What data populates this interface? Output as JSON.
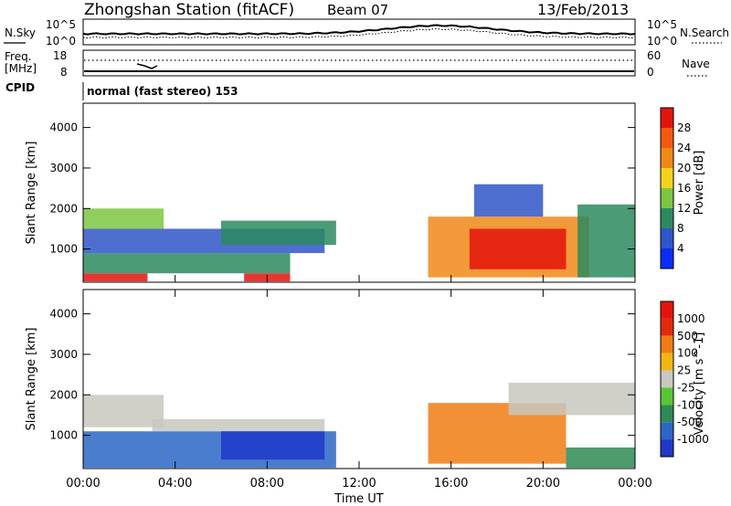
{
  "header": {
    "station": "Zhongshan Station (fitACF)",
    "beam": "Beam 07",
    "date": "13/Feb/2013"
  },
  "top_panels": {
    "noise": {
      "left_label": "N.Sky",
      "left_ticks": [
        "10^5",
        "10^0"
      ],
      "right_ticks": [
        "10^5",
        "10^0"
      ],
      "right_label": "N.Search"
    },
    "freq": {
      "left_label_line1": "Freq.",
      "left_label_line2": "[MHz]",
      "left_ticks": [
        "18",
        "8"
      ],
      "right_ticks": [
        "60",
        "0"
      ],
      "right_label": "Nave"
    },
    "cpid": {
      "label": "CPID",
      "value": "normal (fast stereo) 153"
    }
  },
  "chart_data": [
    {
      "type": "heatmap",
      "title": "",
      "ylabel": "Slant Range [km]",
      "yticks": [
        "1000",
        "2000",
        "3000",
        "4000"
      ],
      "ylim": [
        180,
        4600
      ],
      "colorbar_label": "Power [dB]",
      "colorbar_ticks": [
        "4",
        "8",
        "12",
        "16",
        "20",
        "24",
        "28"
      ],
      "colorbar_colors": [
        "#0a2cf5",
        "#2f56c8",
        "#2c8a5f",
        "#7cc542",
        "#f3d21e",
        "#f08818",
        "#f25a12",
        "#e4140c"
      ],
      "regions": [
        {
          "t0": 0.0,
          "t1": 2.8,
          "r0": 200,
          "r1": 400,
          "level": 7
        },
        {
          "t0": 0.0,
          "t1": 9.0,
          "r0": 400,
          "r1": 900,
          "level": 2
        },
        {
          "t0": 0.0,
          "t1": 10.5,
          "r0": 900,
          "r1": 1500,
          "level": 1
        },
        {
          "t0": 0.0,
          "t1": 3.5,
          "r0": 1500,
          "r1": 2000,
          "level": 3
        },
        {
          "t0": 6.0,
          "t1": 11.0,
          "r0": 1100,
          "r1": 1700,
          "level": 2
        },
        {
          "t0": 7.0,
          "t1": 9.0,
          "r0": 200,
          "r1": 400,
          "level": 7
        },
        {
          "t0": 15.0,
          "t1": 22.0,
          "r0": 300,
          "r1": 1800,
          "level": 5
        },
        {
          "t0": 16.8,
          "t1": 21.0,
          "r0": 500,
          "r1": 1500,
          "level": 7
        },
        {
          "t0": 17.0,
          "t1": 20.0,
          "r0": 1800,
          "r1": 2600,
          "level": 1
        },
        {
          "t0": 21.5,
          "t1": 24.0,
          "r0": 300,
          "r1": 2100,
          "level": 2
        }
      ]
    },
    {
      "type": "heatmap",
      "title": "",
      "xlabel": "Time UT",
      "xticks": [
        "00:00",
        "04:00",
        "08:00",
        "12:00",
        "16:00",
        "20:00",
        "00:00"
      ],
      "xlim": [
        0,
        24
      ],
      "ylabel": "Slant Range [km]",
      "yticks": [
        "1000",
        "2000",
        "3000",
        "4000"
      ],
      "ylim": [
        180,
        4600
      ],
      "colorbar_label": "Velocity [m s^-1]",
      "colorbar_ticks": [
        "1000",
        "500",
        "100",
        "25",
        "-25",
        "-100",
        "-500",
        "-1000"
      ],
      "colorbar_colors": [
        "#1f38c8",
        "#2c66c6",
        "#2f8a55",
        "#58c634",
        "#c8c8c0",
        "#f3b511",
        "#f07c13",
        "#e42a0c",
        "#e4140c"
      ],
      "regions": [
        {
          "t0": 0.0,
          "t1": 3.5,
          "r0": 1200,
          "r1": 2000,
          "level": 4
        },
        {
          "t0": 0.0,
          "t1": 11.0,
          "r0": 200,
          "r1": 1100,
          "level": 1
        },
        {
          "t0": 3.0,
          "t1": 10.5,
          "r0": 1100,
          "r1": 1400,
          "level": 4
        },
        {
          "t0": 6.0,
          "t1": 10.5,
          "r0": 400,
          "r1": 1100,
          "level": 0
        },
        {
          "t0": 15.0,
          "t1": 21.0,
          "r0": 300,
          "r1": 1800,
          "level": 6
        },
        {
          "t0": 18.5,
          "t1": 24.0,
          "r0": 1500,
          "r1": 2300,
          "level": 4
        },
        {
          "t0": 21.0,
          "t1": 24.0,
          "r0": 200,
          "r1": 700,
          "level": 2
        }
      ]
    }
  ]
}
